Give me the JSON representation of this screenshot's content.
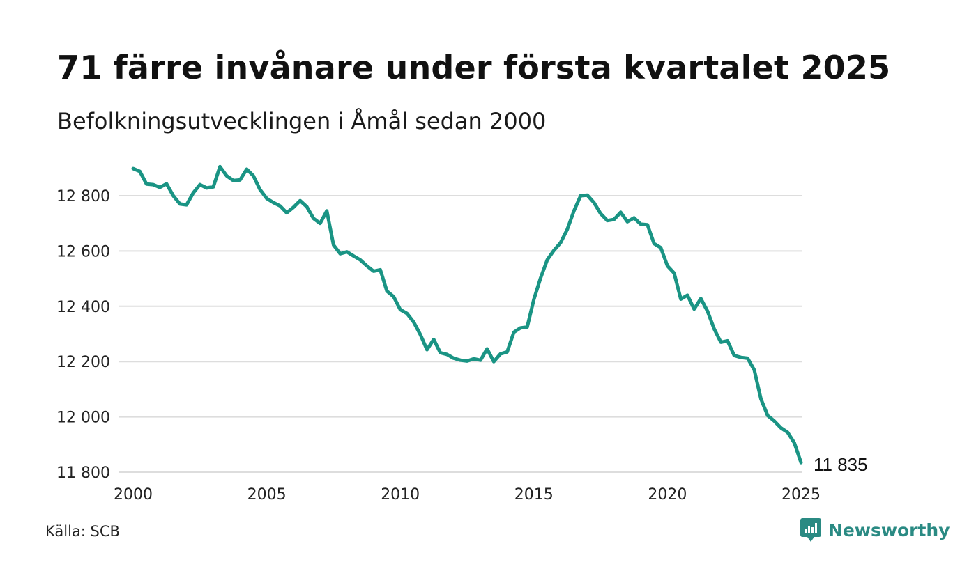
{
  "title": "71 färre invånare under första kvartalet 2025",
  "subtitle": "Befolkningsutvecklingen i Åmål sedan 2000",
  "source": "Källa: SCB",
  "brand": {
    "name": "Newsworthy",
    "icon": "newsworthy-logo-icon",
    "color": "#2a8a83"
  },
  "chart_data": {
    "type": "line",
    "series": [
      {
        "color": "#1a9484",
        "points": [
          [
            2000.0,
            12898
          ],
          [
            2000.25,
            12888
          ],
          [
            2000.5,
            12842
          ],
          [
            2000.75,
            12840
          ],
          [
            2001.0,
            12830
          ],
          [
            2001.25,
            12843
          ],
          [
            2001.5,
            12800
          ],
          [
            2001.75,
            12770
          ],
          [
            2002.0,
            12767
          ],
          [
            2002.25,
            12810
          ],
          [
            2002.5,
            12840
          ],
          [
            2002.75,
            12828
          ],
          [
            2003.0,
            12832
          ],
          [
            2003.25,
            12905
          ],
          [
            2003.5,
            12872
          ],
          [
            2003.75,
            12855
          ],
          [
            2004.0,
            12857
          ],
          [
            2004.25,
            12896
          ],
          [
            2004.5,
            12872
          ],
          [
            2004.75,
            12822
          ],
          [
            2005.0,
            12790
          ],
          [
            2005.25,
            12775
          ],
          [
            2005.5,
            12763
          ],
          [
            2005.75,
            12738
          ],
          [
            2006.0,
            12758
          ],
          [
            2006.25,
            12782
          ],
          [
            2006.5,
            12760
          ],
          [
            2006.75,
            12718
          ],
          [
            2007.0,
            12700
          ],
          [
            2007.25,
            12745
          ],
          [
            2007.5,
            12622
          ],
          [
            2007.75,
            12590
          ],
          [
            2008.0,
            12597
          ],
          [
            2008.25,
            12582
          ],
          [
            2008.5,
            12568
          ],
          [
            2008.75,
            12546
          ],
          [
            2009.0,
            12527
          ],
          [
            2009.25,
            12532
          ],
          [
            2009.5,
            12455
          ],
          [
            2009.75,
            12435
          ],
          [
            2010.0,
            12388
          ],
          [
            2010.25,
            12374
          ],
          [
            2010.5,
            12343
          ],
          [
            2010.75,
            12298
          ],
          [
            2011.0,
            12243
          ],
          [
            2011.25,
            12280
          ],
          [
            2011.5,
            12232
          ],
          [
            2011.75,
            12226
          ],
          [
            2012.0,
            12212
          ],
          [
            2012.25,
            12205
          ],
          [
            2012.5,
            12202
          ],
          [
            2012.75,
            12210
          ],
          [
            2013.0,
            12205
          ],
          [
            2013.25,
            12246
          ],
          [
            2013.5,
            12200
          ],
          [
            2013.75,
            12228
          ],
          [
            2014.0,
            12235
          ],
          [
            2014.25,
            12306
          ],
          [
            2014.5,
            12322
          ],
          [
            2014.75,
            12325
          ],
          [
            2015.0,
            12425
          ],
          [
            2015.25,
            12502
          ],
          [
            2015.5,
            12568
          ],
          [
            2015.75,
            12602
          ],
          [
            2016.0,
            12630
          ],
          [
            2016.25,
            12678
          ],
          [
            2016.5,
            12745
          ],
          [
            2016.75,
            12800
          ],
          [
            2017.0,
            12802
          ],
          [
            2017.25,
            12775
          ],
          [
            2017.5,
            12735
          ],
          [
            2017.75,
            12710
          ],
          [
            2018.0,
            12714
          ],
          [
            2018.25,
            12740
          ],
          [
            2018.5,
            12706
          ],
          [
            2018.75,
            12720
          ],
          [
            2019.0,
            12697
          ],
          [
            2019.25,
            12695
          ],
          [
            2019.5,
            12627
          ],
          [
            2019.75,
            12612
          ],
          [
            2020.0,
            12546
          ],
          [
            2020.25,
            12520
          ],
          [
            2020.5,
            12426
          ],
          [
            2020.75,
            12440
          ],
          [
            2021.0,
            12390
          ],
          [
            2021.25,
            12428
          ],
          [
            2021.5,
            12382
          ],
          [
            2021.75,
            12318
          ],
          [
            2022.0,
            12270
          ],
          [
            2022.25,
            12275
          ],
          [
            2022.5,
            12222
          ],
          [
            2022.75,
            12215
          ],
          [
            2023.0,
            12212
          ],
          [
            2023.25,
            12170
          ],
          [
            2023.5,
            12065
          ],
          [
            2023.75,
            12005
          ],
          [
            2024.0,
            11985
          ],
          [
            2024.25,
            11960
          ],
          [
            2024.5,
            11944
          ],
          [
            2024.75,
            11906
          ],
          [
            2025.0,
            11835
          ]
        ]
      }
    ],
    "end_label": "11 835",
    "x_ticks": [
      2000,
      2005,
      2010,
      2015,
      2020,
      2025
    ],
    "y_ticks": [
      11800,
      12000,
      12200,
      12400,
      12600,
      12800
    ],
    "y_tick_labels": [
      "11 800",
      "12 000",
      "12 200",
      "12 400",
      "12 600",
      "12 800"
    ],
    "xlim": [
      2000,
      2025
    ],
    "ylim": [
      11800,
      12900
    ],
    "grid": "horizontal",
    "gridline_color": "#dddddd"
  }
}
